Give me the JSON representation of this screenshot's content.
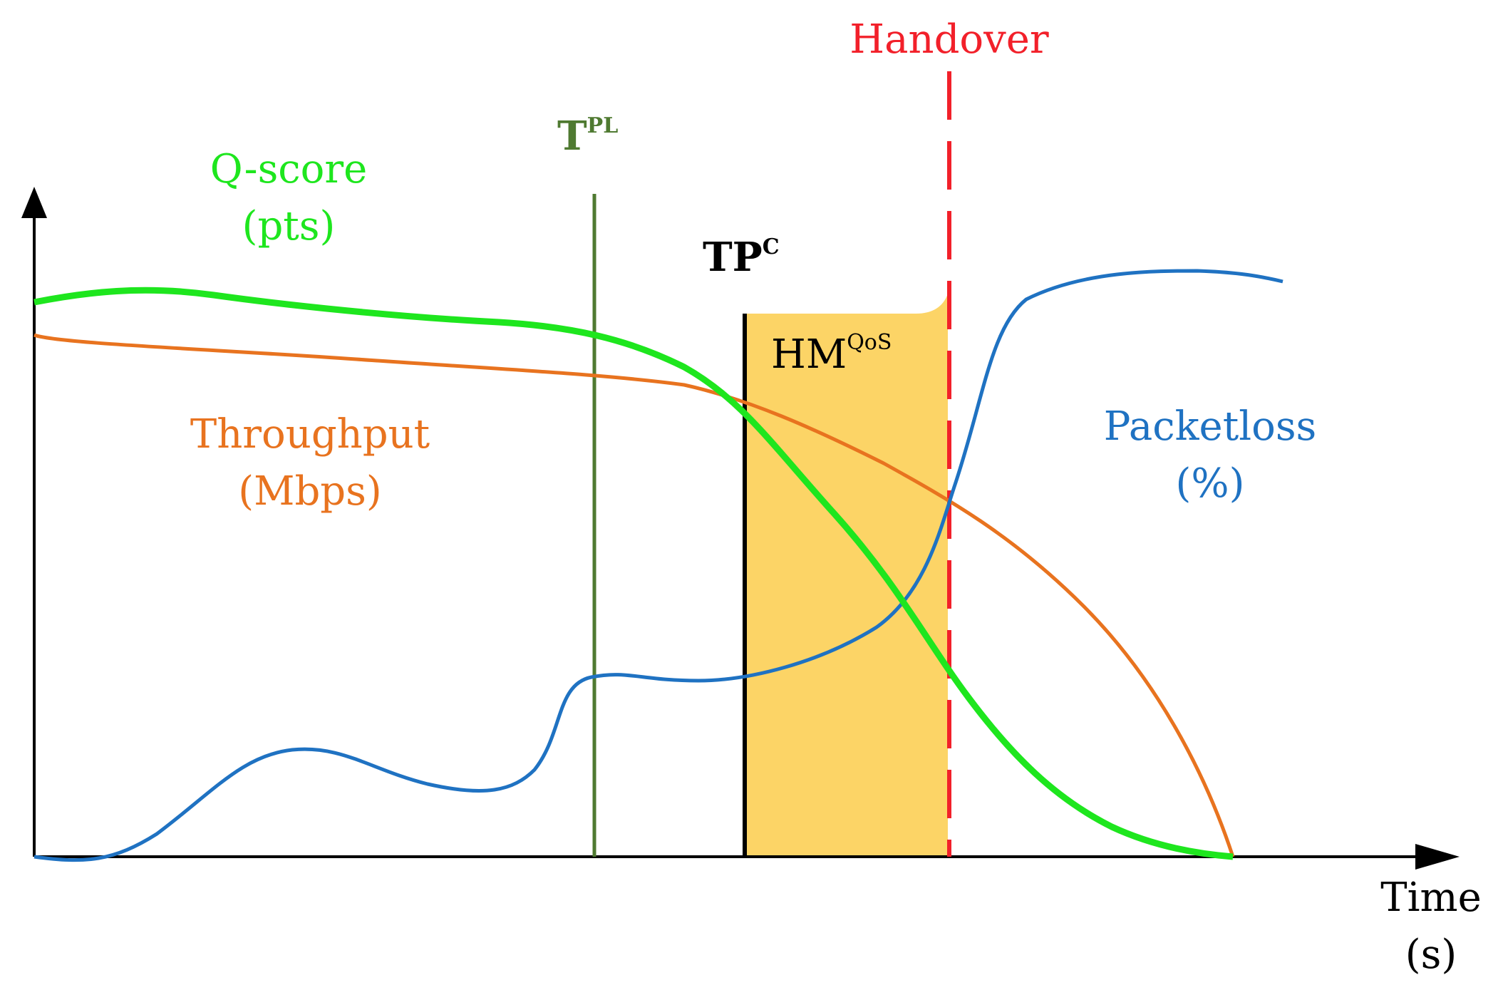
{
  "colors": {
    "qscore": "#1ee61e",
    "throughput": "#e8731f",
    "packetloss": "#1f72c2",
    "tpl": "#4f7a31",
    "tpc": "#000000",
    "handover": "#f2202a",
    "hmqos_fill": "#fcd466",
    "axis": "#000000"
  },
  "labels": {
    "qscore_line1": "Q-score",
    "qscore_line2": "(pts)",
    "throughput_line1": "Throughput",
    "throughput_line2": "(Mbps)",
    "packetloss_line1": "Packetloss",
    "packetloss_line2": "(%)",
    "tpl_base": "T",
    "tpl_sup": "PL",
    "tpc_base": "TP",
    "tpc_sup": "C",
    "hmqos_base": "HM",
    "hmqos_sup": "QoS",
    "handover": "Handover",
    "time_line1": "Time",
    "time_line2": "(s)"
  },
  "icons": {
    "y_axis_arrow": "arrow-up-icon",
    "x_axis_arrow": "arrow-right-icon"
  }
}
